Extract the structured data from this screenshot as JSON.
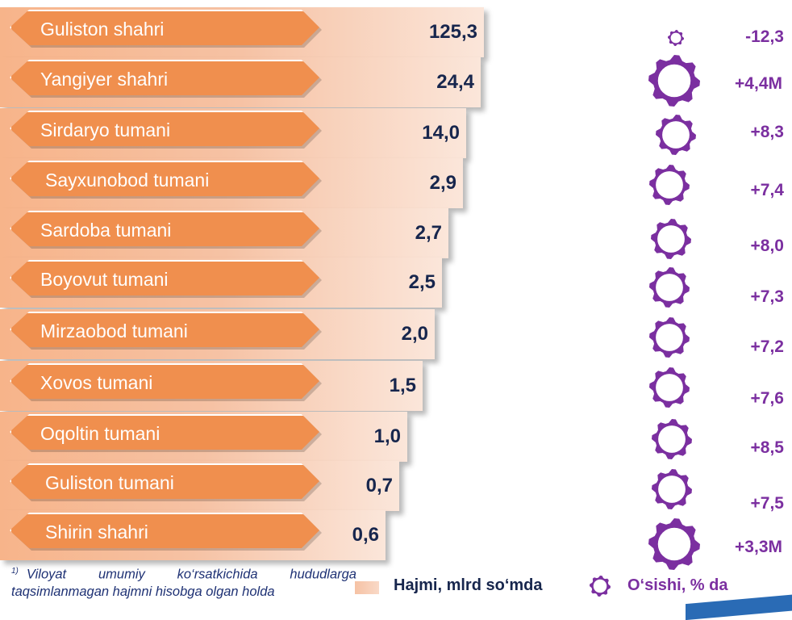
{
  "chart_data": {
    "type": "bar",
    "categories": [
      "Guliston shahri",
      "Yangiyer shahri",
      "Sirdaryo tumani",
      "Sayxunobod tumani",
      "Sardoba tumani",
      "Boyovut tumani",
      "Mirzaobod tumani",
      "Xovos tumani",
      "Oqoltin tumani",
      "Guliston tumani",
      "Shirin shahri"
    ],
    "values": [
      125.3,
      24.4,
      14.0,
      2.9,
      2.7,
      2.5,
      2.0,
      1.5,
      1.0,
      0.7,
      0.6
    ],
    "value_labels": [
      "125,3",
      "24,4",
      "14,0",
      "2,9",
      "2,7",
      "2,5",
      "2,0",
      "1,5",
      "1,0",
      "0,7",
      "0,6"
    ],
    "growth_labels": [
      "-12,3",
      "+4,4M",
      "+8,3",
      "+7,4",
      "+8,0",
      "+7,3",
      "+7,2",
      "+7,6",
      "+8,5",
      "+7,5",
      "+3,3M"
    ],
    "growth_large_icon": [
      false,
      true,
      false,
      false,
      false,
      false,
      false,
      false,
      false,
      false,
      true
    ],
    "orientation": "horizontal",
    "scale": "non-linear"
  },
  "legend": {
    "volume_label": "Hajmi, mlrd so‘mda",
    "growth_label": "O‘sishi, % da"
  },
  "footnote": {
    "marker": "1)",
    "text": "Viloyat umumiy ko‘rsatkichida hududlarga taqsimlanmagan hajmni hisobga olgan holda"
  },
  "colors": {
    "label_fill": "#f08f4e",
    "bar_fill": "#f6c2a4",
    "value_text": "#17264d",
    "growth": "#7b2fa0",
    "footnote": "#1e3174"
  }
}
